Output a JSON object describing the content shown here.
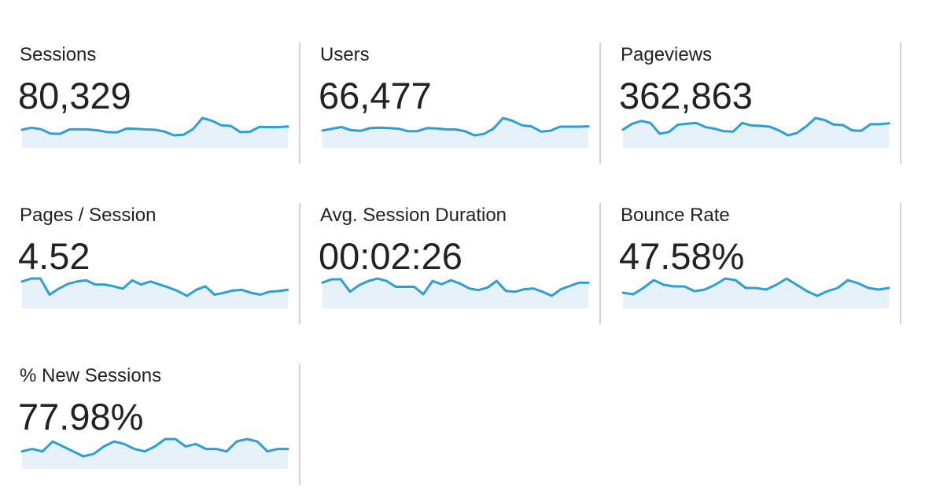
{
  "metrics": [
    {
      "label": "Sessions",
      "value": "80,329"
    },
    {
      "label": "Users",
      "value": "66,477"
    },
    {
      "label": "Pageviews",
      "value": "362,863"
    },
    {
      "label": "Pages / Session",
      "value": "4.52"
    },
    {
      "label": "Avg. Session Duration",
      "value": "00:02:26"
    },
    {
      "label": "Bounce Rate",
      "value": "47.58%"
    },
    {
      "label": "% New Sessions",
      "value": "77.98%"
    }
  ],
  "colors": {
    "line": "#2c9fd6",
    "area": "#e6f1fa",
    "divider": "#d2d2d2"
  },
  "chart_data": [
    {
      "type": "area",
      "series": [
        {
          "values": [
            2840,
            2910,
            2860,
            2710,
            2700,
            2850,
            2860,
            2850,
            2820,
            2760,
            2750,
            2880,
            2870,
            2850,
            2840,
            2780,
            2650,
            2670,
            2860,
            3240,
            3150,
            2990,
            2970,
            2760,
            2770,
            2940,
            2930,
            2930,
            2950
          ]
        }
      ]
    },
    {
      "type": "area",
      "series": [
        {
          "values": [
            2350,
            2400,
            2450,
            2360,
            2340,
            2420,
            2430,
            2420,
            2400,
            2330,
            2330,
            2420,
            2410,
            2380,
            2380,
            2330,
            2210,
            2250,
            2400,
            2710,
            2630,
            2500,
            2470,
            2320,
            2340,
            2460,
            2460,
            2460,
            2470
          ]
        }
      ]
    },
    {
      "type": "area",
      "series": [
        {
          "values": [
            12900,
            13600,
            13950,
            13700,
            12400,
            12600,
            13500,
            13600,
            13700,
            13200,
            13000,
            12700,
            12650,
            13700,
            13400,
            13350,
            13250,
            12800,
            12200,
            12500,
            13300,
            14300,
            14050,
            13500,
            13450,
            12800,
            12750,
            13550,
            13550,
            13650
          ]
        }
      ]
    },
    {
      "type": "area",
      "series": [
        {
          "values": [
            4.6,
            4.65,
            4.65,
            4.38,
            4.48,
            4.56,
            4.6,
            4.62,
            4.55,
            4.55,
            4.52,
            4.48,
            4.62,
            4.55,
            4.6,
            4.55,
            4.5,
            4.44,
            4.36,
            4.46,
            4.52,
            4.38,
            4.41,
            4.45,
            4.46,
            4.41,
            4.38,
            4.43,
            4.44,
            4.46
          ]
        }
      ]
    },
    {
      "type": "area",
      "series": [
        {
          "values": [
            152,
            156,
            156,
            141,
            149,
            154,
            157,
            154,
            147,
            147,
            147,
            138,
            154,
            150,
            155,
            151,
            145,
            143,
            146,
            154,
            142,
            141,
            144,
            145,
            141,
            136,
            144,
            148,
            152,
            152
          ]
        }
      ]
    },
    {
      "type": "area",
      "series": [
        {
          "values": [
            47.5,
            47.4,
            47.8,
            48.3,
            48.0,
            47.9,
            47.9,
            47.6,
            47.7,
            48.0,
            48.4,
            48.3,
            47.8,
            47.8,
            47.7,
            48.0,
            48.4,
            48.0,
            47.6,
            47.3,
            47.6,
            47.8,
            48.3,
            48.1,
            47.8,
            47.7,
            47.8
          ]
        }
      ]
    },
    {
      "type": "area",
      "series": [
        {
          "values": [
            77.8,
            77.9,
            77.8,
            78.2,
            78.0,
            77.8,
            77.6,
            77.7,
            78.0,
            78.2,
            78.1,
            77.9,
            77.8,
            78.0,
            78.3,
            78.3,
            78.0,
            78.1,
            77.9,
            77.9,
            77.8,
            78.2,
            78.3,
            78.2,
            77.8,
            77.9,
            77.9
          ]
        }
      ]
    }
  ]
}
